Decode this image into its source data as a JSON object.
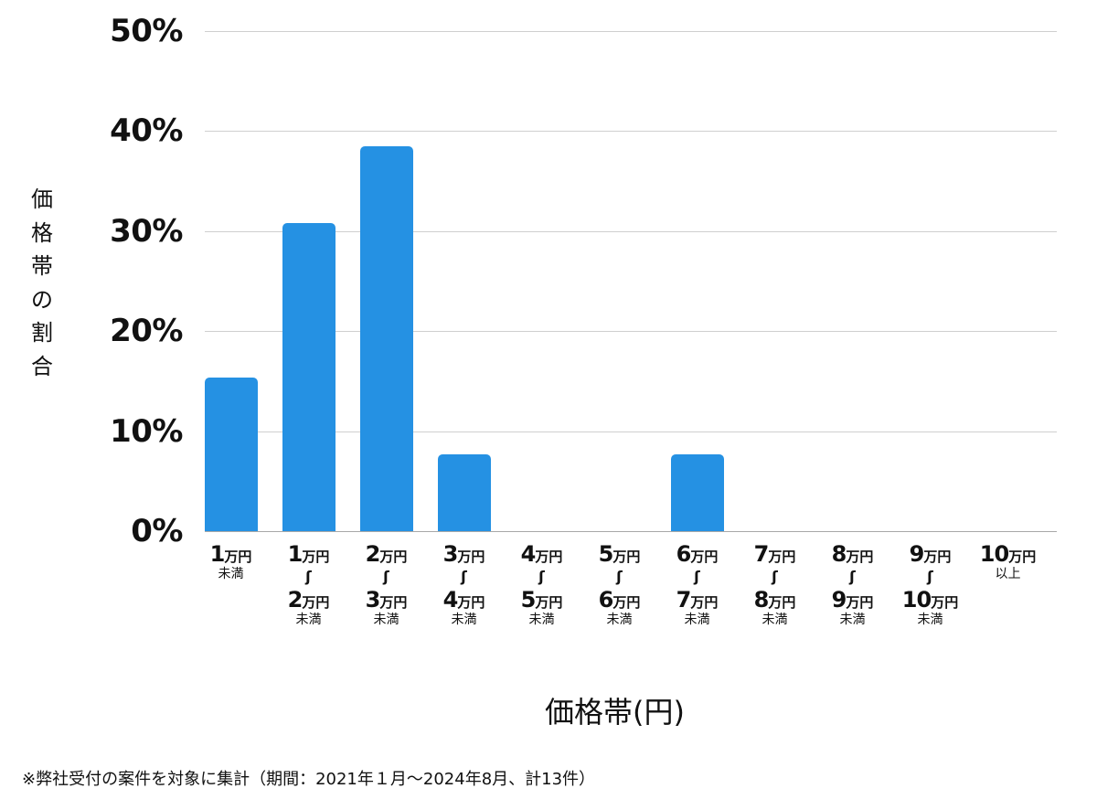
{
  "chart_data": {
    "type": "bar",
    "title": "",
    "xlabel": "価格帯(円)",
    "ylabel": "価格帯の割合",
    "ylim": [
      0,
      50
    ],
    "yticks": [
      "0%",
      "10%",
      "20%",
      "30%",
      "40%",
      "50%"
    ],
    "grid": true,
    "legend": null,
    "bar_color": "#2591e3",
    "categories": [
      {
        "top_num": "1",
        "top_unit": "万円",
        "sub": "未満",
        "range": false
      },
      {
        "top_num": "1",
        "top_unit": "万円",
        "bottom_num": "2",
        "bottom_unit": "万円",
        "sub": "未満",
        "range": true
      },
      {
        "top_num": "2",
        "top_unit": "万円",
        "bottom_num": "3",
        "bottom_unit": "万円",
        "sub": "未満",
        "range": true
      },
      {
        "top_num": "3",
        "top_unit": "万円",
        "bottom_num": "4",
        "bottom_unit": "万円",
        "sub": "未満",
        "range": true
      },
      {
        "top_num": "4",
        "top_unit": "万円",
        "bottom_num": "5",
        "bottom_unit": "万円",
        "sub": "未満",
        "range": true
      },
      {
        "top_num": "5",
        "top_unit": "万円",
        "bottom_num": "6",
        "bottom_unit": "万円",
        "sub": "未満",
        "range": true
      },
      {
        "top_num": "6",
        "top_unit": "万円",
        "bottom_num": "7",
        "bottom_unit": "万円",
        "sub": "未満",
        "range": true
      },
      {
        "top_num": "7",
        "top_unit": "万円",
        "bottom_num": "8",
        "bottom_unit": "万円",
        "sub": "未満",
        "range": true
      },
      {
        "top_num": "8",
        "top_unit": "万円",
        "bottom_num": "9",
        "bottom_unit": "万円",
        "sub": "未満",
        "range": true
      },
      {
        "top_num": "9",
        "top_unit": "万円",
        "bottom_num": "10",
        "bottom_unit": "万円",
        "sub": "未満",
        "range": true
      },
      {
        "top_num": "10",
        "top_unit": "万円",
        "sub": "以上",
        "range": false
      }
    ],
    "category_labels": [
      "1万円未満",
      "1万円〜2万円未満",
      "2万円〜3万円未満",
      "3万円〜4万円未満",
      "4万円〜5万円未満",
      "5万円〜6万円未満",
      "6万円〜7万円未満",
      "7万円〜8万円未満",
      "8万円〜9万円未満",
      "9万円〜10万円未満",
      "10万円以上"
    ],
    "values": [
      15.4,
      30.8,
      38.5,
      7.7,
      0,
      0,
      7.7,
      0,
      0,
      0,
      0
    ],
    "tilde": "〜"
  },
  "footnote": "※弊社受付の案件を対象に集計（期間：2021年１月〜2024年8月、計13件）"
}
